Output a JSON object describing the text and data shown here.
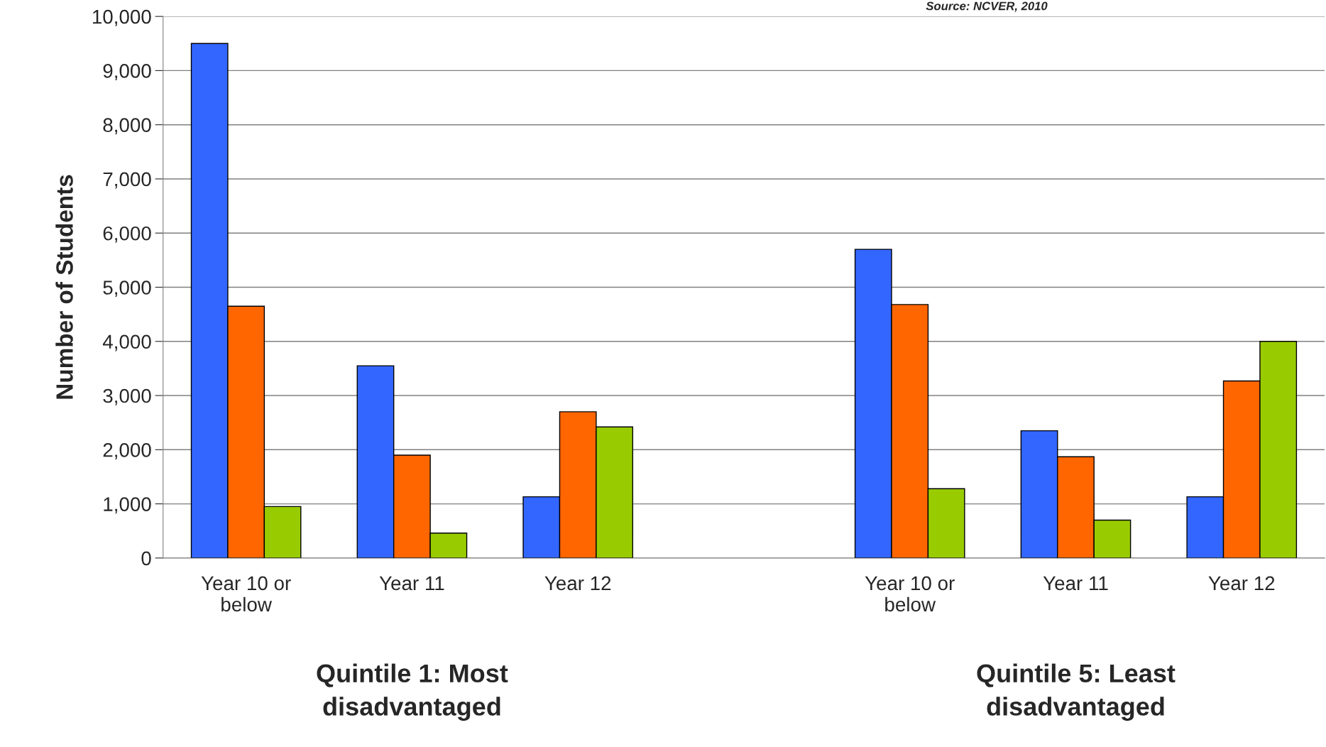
{
  "chart_data": {
    "type": "bar",
    "ylabel": "Number of Students",
    "categories": [
      "Year 10 or below",
      "Year 11",
      "Year 12",
      null,
      "Year 10 or below",
      "Year 11",
      "Year 12"
    ],
    "series": [
      {
        "color": "#3366ff",
        "values": [
          9500,
          3550,
          1130,
          null,
          5700,
          2350,
          1130
        ]
      },
      {
        "color": "#ff6600",
        "values": [
          4650,
          1900,
          2700,
          null,
          4680,
          1870,
          3270
        ]
      },
      {
        "color": "#99cc00",
        "values": [
          950,
          460,
          2420,
          null,
          1280,
          700,
          4000
        ]
      }
    ],
    "ylim": [
      0,
      10000
    ],
    "yticks": [
      {
        "value": 0,
        "label": "0"
      },
      {
        "value": 1000,
        "label": "1,000"
      },
      {
        "value": 2000,
        "label": "2,000"
      },
      {
        "value": 3000,
        "label": "3,000"
      },
      {
        "value": 4000,
        "label": "4,000"
      },
      {
        "value": 5000,
        "label": "5,000"
      },
      {
        "value": 6000,
        "label": "6,000"
      },
      {
        "value": 7000,
        "label": "7,000"
      },
      {
        "value": 8000,
        "label": "8,000"
      },
      {
        "value": 9000,
        "label": "9,000"
      },
      {
        "value": 10000,
        "label": "10,000"
      }
    ],
    "grid": "y",
    "annotations": [
      "Source: NCVER, 2010",
      "Quintile 1: Most disadvantaged",
      "Quintile 5: Least disadvantaged"
    ]
  }
}
